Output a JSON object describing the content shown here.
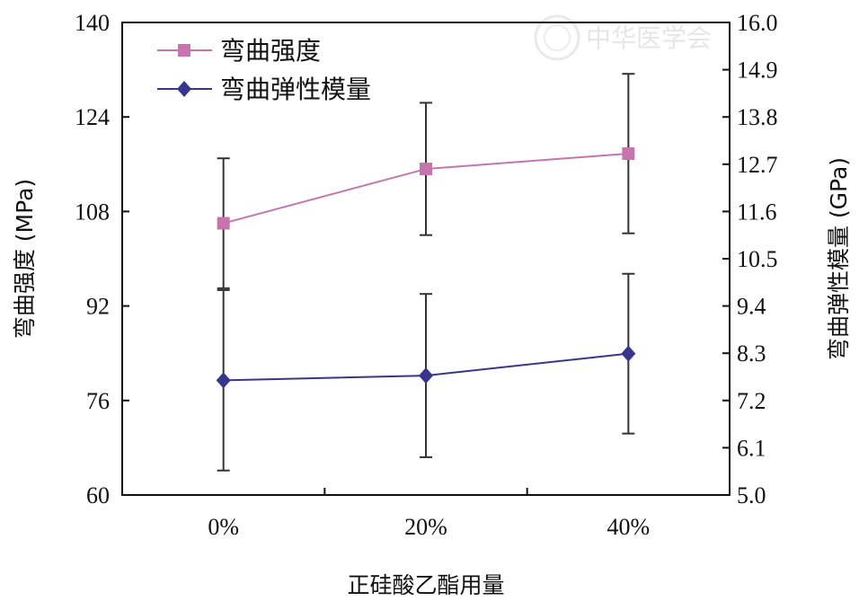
{
  "chart_data": {
    "type": "line",
    "categories": [
      "0%",
      "20%",
      "40%"
    ],
    "xlabel": "正硅酸乙酯用量",
    "ylabel": "弯曲强度 (MPa)",
    "y2label": "弯曲弹性模量 (GPa)",
    "ylim": [
      60,
      140
    ],
    "yticks": [
      "60",
      "76",
      "92",
      "108",
      "124",
      "140"
    ],
    "y2lim": [
      5.0,
      16.0
    ],
    "y2ticks": [
      "5.0",
      "6.1",
      "7.2",
      "8.3",
      "9.4",
      "10.5",
      "11.6",
      "12.7",
      "13.8",
      "14.9",
      "16.0"
    ],
    "grid": false,
    "legend_position": "top-left",
    "series": [
      {
        "name": "弯曲强度",
        "axis": "left",
        "marker": "square",
        "color": "#c774ae",
        "values": [
          106,
          115.2,
          117.8
        ],
        "errors": [
          11,
          11.2,
          13.5
        ]
      },
      {
        "name": "弯曲弹性模量",
        "axis": "right",
        "marker": "diamond",
        "color": "#37368c",
        "values": [
          7.67,
          7.78,
          8.29
        ],
        "errors": [
          2.1,
          1.9,
          1.86
        ]
      }
    ]
  },
  "watermark": {
    "text": "中华医学会"
  }
}
